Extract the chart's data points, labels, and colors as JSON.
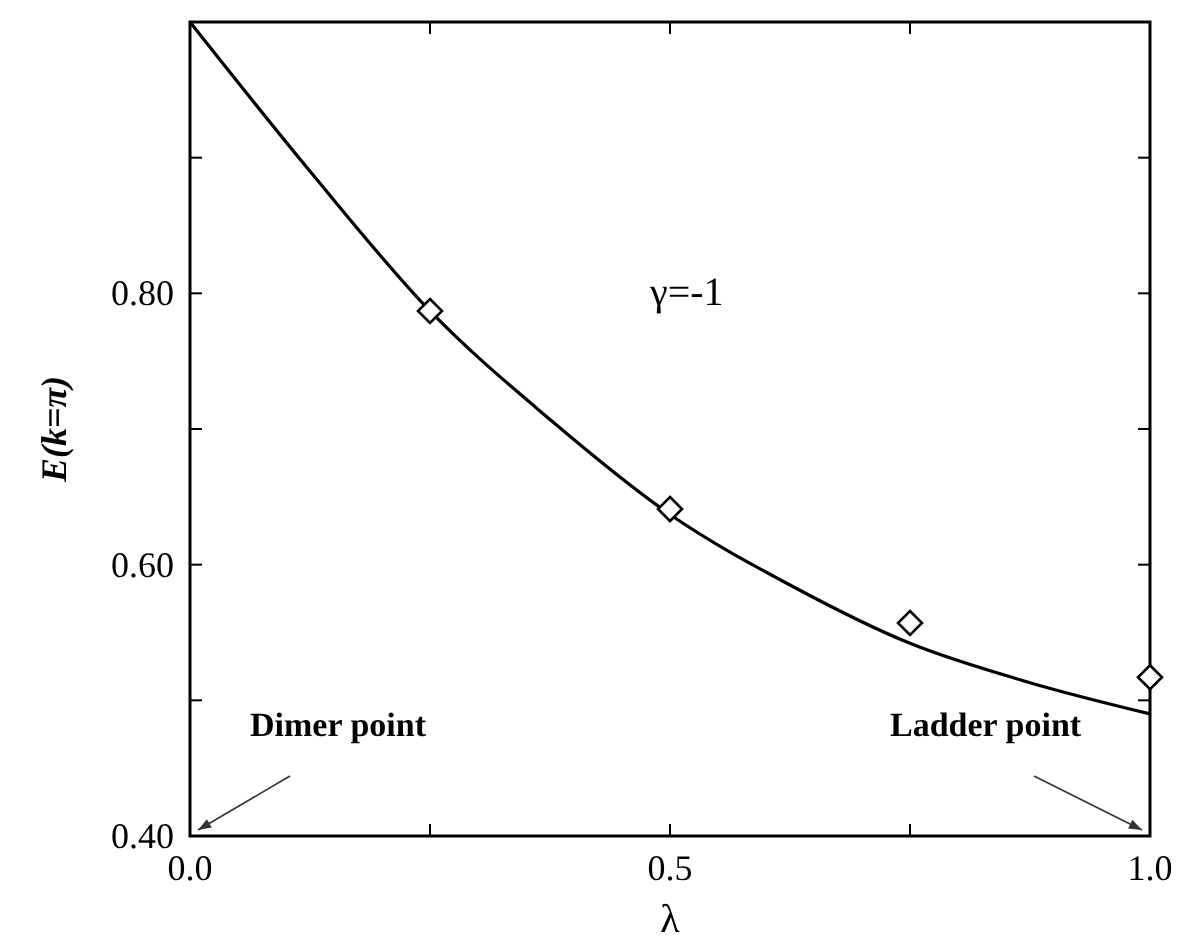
{
  "chart_data": {
    "type": "scatter",
    "xlabel": "λ",
    "ylabel": "E(k=π)",
    "xlim": [
      0,
      1
    ],
    "xticks": [
      {
        "value": 0,
        "label": "0.0"
      },
      {
        "value": 0.25,
        "label": null
      },
      {
        "value": 0.5,
        "label": "0.5"
      },
      {
        "value": 0.75,
        "label": null
      },
      {
        "value": 1,
        "label": "1.0"
      }
    ],
    "ylim": [
      0.4,
      1.0
    ],
    "yticks": [
      {
        "value": 0.4,
        "label": "0.40"
      },
      {
        "value": 0.5,
        "label": null
      },
      {
        "value": 0.6,
        "label": "0.60"
      },
      {
        "value": 0.7,
        "label": null
      },
      {
        "value": 0.8,
        "label": "0.80"
      },
      {
        "value": 0.9,
        "label": null
      }
    ],
    "grid": false,
    "series": [
      {
        "type": "line",
        "color": "#000000",
        "marker": "none",
        "line_style": "solid",
        "x": [
          0,
          0.125,
          0.25,
          0.375,
          0.5,
          0.625,
          0.75,
          0.875,
          1
        ],
        "values": [
          1.0,
          0.89,
          0.787,
          0.707,
          0.637,
          0.585,
          0.542,
          0.513,
          0.49
        ]
      },
      {
        "color": "#000000",
        "marker": "diamond",
        "x": [
          0.25,
          0.5,
          0.75,
          1
        ],
        "values": [
          0.787,
          0.641,
          0.557,
          0.517
        ]
      }
    ],
    "annotations": [
      "γ=-1",
      "Dimer point",
      "Ladder point"
    ]
  }
}
